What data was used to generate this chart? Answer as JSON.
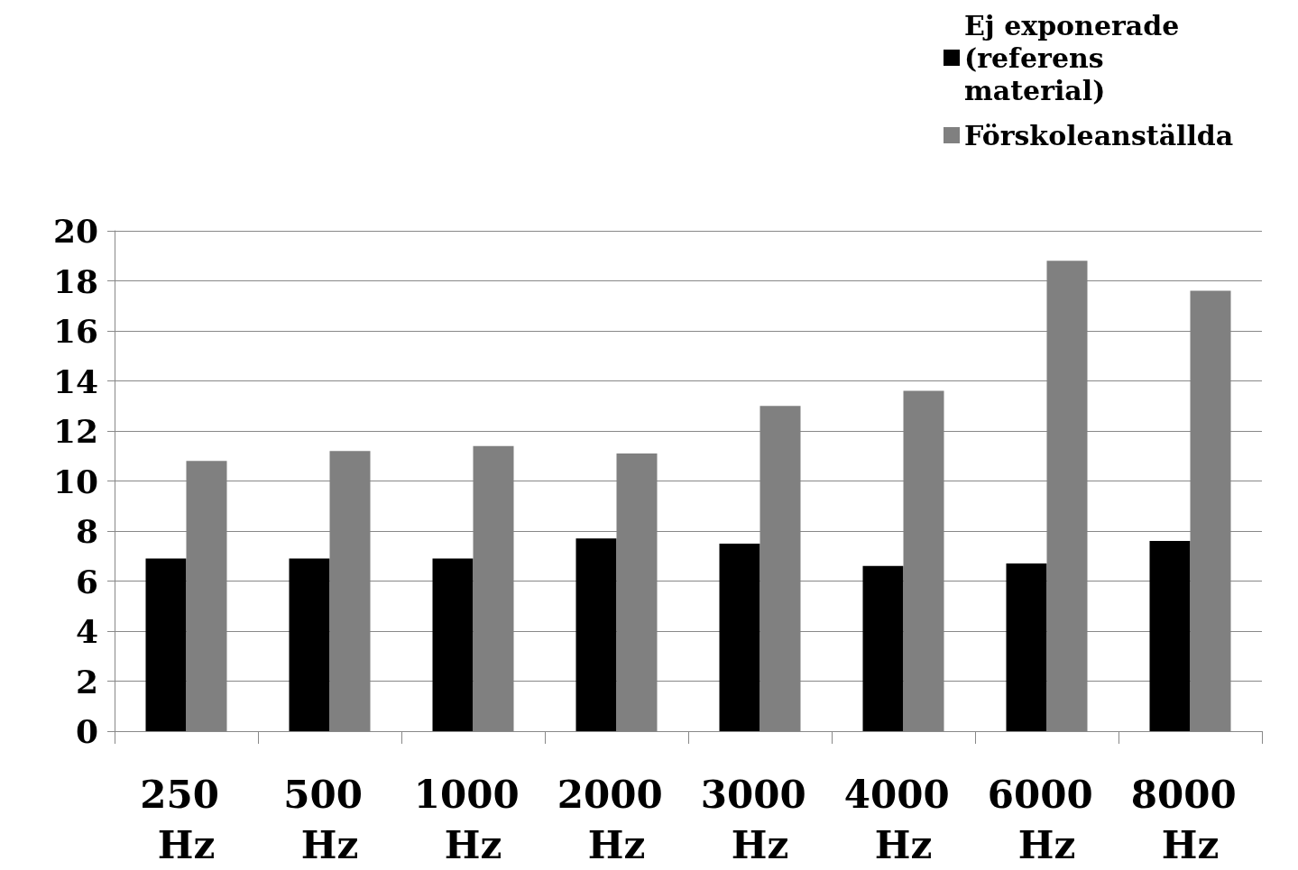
{
  "chart_data": {
    "type": "bar",
    "categories": [
      "250 Hz",
      "500 Hz",
      "1000 Hz",
      "2000 Hz",
      "3000 Hz",
      "4000 Hz",
      "6000 Hz",
      "8000 Hz"
    ],
    "series": [
      {
        "name": "Ej exponerade (referens material)",
        "color": "#000000",
        "values": [
          6.9,
          6.9,
          6.9,
          7.7,
          7.5,
          6.6,
          6.7,
          7.6
        ]
      },
      {
        "name": "Förskoleanställda",
        "color": "#808080",
        "values": [
          10.8,
          11.2,
          11.4,
          11.1,
          13.0,
          13.6,
          18.8,
          17.6
        ]
      }
    ],
    "ylim": [
      0,
      20
    ],
    "yticks": [
      0,
      2,
      4,
      6,
      8,
      10,
      12,
      14,
      16,
      18,
      20
    ],
    "grid": "y",
    "legend": "top right"
  }
}
